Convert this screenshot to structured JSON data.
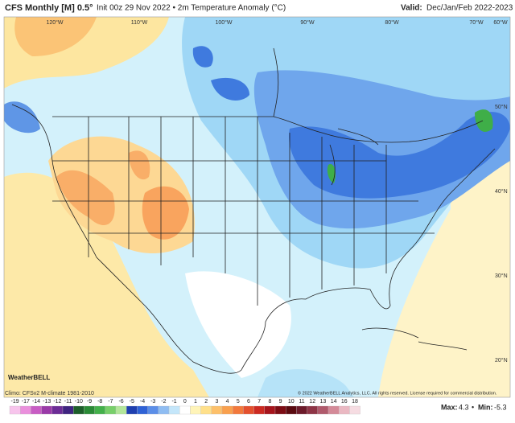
{
  "header": {
    "title": "CFS Monthly [M] 0.5°",
    "subtitle": "Init 00z 29 Nov 2022 • 2m Temperature Anomaly (°C)",
    "valid_label": "Valid:",
    "valid": "Dec/Jan/Feb 2022-2023"
  },
  "map": {
    "lon_labels": [
      "120°W",
      "110°W",
      "100°W",
      "90°W",
      "80°W",
      "70°W",
      "60°W"
    ],
    "lat_labels": [
      "50°N",
      "40°N",
      "30°N",
      "20°N"
    ],
    "logo": "WeatherBELL"
  },
  "footer": {
    "climo": "Climo: CFSv2 M-climate 1981-2010",
    "copyright": "© 2022 WeatherBELL Analytics, LLC. All rights reserved. License required for commercial distribution.",
    "max_label": "Max:",
    "max": "4.3",
    "separator": "•",
    "min_label": "Min:",
    "min": "-5.3"
  },
  "colorbar": {
    "labels": [
      "-19",
      "-17",
      "-14",
      "-13",
      "-12",
      "-11",
      "-10",
      "-9",
      "-8",
      "-7",
      "-6",
      "-5",
      "-4",
      "-3",
      "-2",
      "-1",
      "0",
      "1",
      "2",
      "3",
      "4",
      "5",
      "6",
      "7",
      "8",
      "9",
      "10",
      "11",
      "12",
      "13",
      "14",
      "16",
      "18"
    ],
    "colors": [
      "#f7c4ec",
      "#ea8fdc",
      "#c85cc4",
      "#9a3aa8",
      "#6c2c96",
      "#3f2480",
      "#1d5e2a",
      "#2a8a36",
      "#43b04a",
      "#78cf6a",
      "#b3e69a",
      "#1f3fb0",
      "#2f62d6",
      "#5b8ee8",
      "#8fbdf2",
      "#c4e6fa",
      "#ffffff",
      "#fff4b8",
      "#ffe08a",
      "#fdc06a",
      "#f9a04e",
      "#f2793c",
      "#e4502e",
      "#cc2a22",
      "#a6141c",
      "#7c0c14",
      "#5a0a10",
      "#6c1a2a",
      "#8e3446",
      "#b05a6c",
      "#d48a98",
      "#eab8c2",
      "#f6dce2"
    ]
  }
}
